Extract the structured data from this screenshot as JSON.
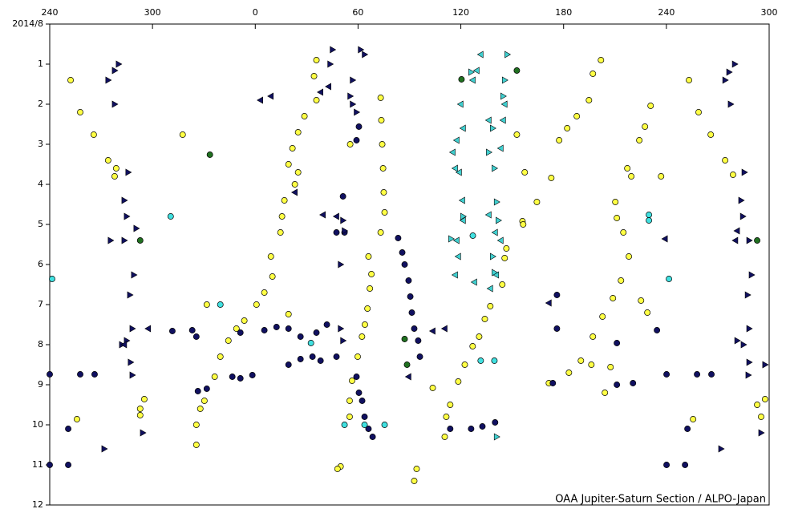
{
  "chart_data": {
    "type": "scatter",
    "annotation": "OAA Jupiter-Saturn Section / ALPO-Japan",
    "xlim": [
      240,
      660
    ],
    "xticks": [
      240,
      300,
      {
        "value": 360,
        "label": "0"
      },
      {
        "value": 420,
        "label": "60"
      },
      {
        "value": 480,
        "label": "120"
      },
      {
        "value": 540,
        "label": "180"
      },
      {
        "value": 600,
        "label": "240"
      },
      {
        "value": 660,
        "label": "300"
      }
    ],
    "ylim": [
      0,
      12
    ],
    "y_reversed": true,
    "yticks": [
      {
        "value": 0,
        "label": "2014/8"
      },
      1,
      2,
      3,
      4,
      5,
      6,
      7,
      8,
      9,
      10,
      11,
      12
    ],
    "ytick_labels_override": null,
    "series": [
      {
        "color": "#ffff44",
        "marker": "circle",
        "x": [
          252.2,
          257.8,
          265.7,
          274.1,
          278.8,
          277.9,
          292.8,
          295.2,
          292.8,
          317.6,
          331.7,
          613.2,
          618.8,
          625.9,
          634.3,
          638.9,
          653.0,
          655.3,
          657.6,
          615.6,
          255.9,
          395.7,
          394.3,
          395.7,
          388.7,
          385.0,
          381.7,
          379.4,
          385.0,
          383.1,
          377.0,
          375.6,
          374.7,
          369.1,
          370.0,
          365.3,
          360.7,
          353.6,
          349.0,
          344.3,
          339.6,
          336.3,
          330.3,
          327.9,
          325.6,
          325.6,
          433.2,
          433.6,
          434.1,
          434.6,
          435.0,
          435.5,
          433.2,
          427.8,
          426.9,
          425.5,
          424.0,
          422.3,
          419.8,
          416.5,
          415.1,
          415.1,
          426.1,
          415.4,
          561.8,
          557.1,
          554.8,
          547.7,
          542.1,
          537.4,
          532.8,
          524.4,
          516.0,
          504.2,
          497.2,
          494.0,
          490.7,
          486.9,
          482.3,
          478.5,
          473.8,
          471.5,
          470.6,
          590.8,
          587.5,
          584.2,
          577.2,
          579.5,
          570.2,
          571.1,
          574.9,
          578.1,
          573.5,
          568.8,
          562.7,
          557.1,
          550.1,
          543.1,
          564.1,
          596.9,
          512.7,
          517.3,
          516.4,
          505.6,
          506.6,
          454.2,
          452.8,
          409.8,
          408.0,
          463.6,
          379.4,
          585.2,
          588.9,
          531.4,
          567.4,
          556.2
        ],
        "values": [
          1.4,
          2.2,
          2.76,
          3.4,
          3.6,
          3.8,
          9.6,
          9.36,
          9.76,
          2.76,
          7.0,
          1.4,
          2.2,
          2.76,
          3.4,
          3.76,
          9.5,
          9.8,
          9.36,
          9.86,
          9.86,
          0.9,
          1.3,
          1.9,
          2.3,
          2.7,
          3.1,
          3.5,
          3.7,
          4.0,
          4.4,
          4.8,
          5.2,
          5.8,
          6.3,
          6.7,
          7.0,
          7.4,
          7.6,
          7.9,
          8.3,
          8.8,
          9.4,
          9.6,
          10.0,
          10.5,
          1.84,
          2.4,
          3.0,
          3.6,
          4.2,
          4.7,
          5.2,
          6.24,
          6.6,
          7.1,
          7.5,
          7.8,
          8.3,
          8.9,
          9.4,
          9.8,
          5.8,
          3.0,
          0.9,
          1.24,
          1.9,
          2.3,
          2.6,
          2.9,
          3.84,
          4.44,
          4.92,
          6.5,
          7.04,
          7.36,
          7.8,
          8.04,
          8.5,
          8.92,
          9.5,
          9.8,
          10.3,
          2.04,
          2.56,
          2.9,
          3.6,
          3.8,
          4.44,
          4.84,
          5.2,
          5.8,
          6.4,
          6.84,
          7.3,
          7.8,
          8.4,
          8.7,
          9.2,
          3.8,
          2.76,
          3.7,
          5.0,
          5.84,
          5.6,
          11.1,
          11.4,
          11.04,
          11.1,
          9.08,
          7.24,
          6.9,
          7.2,
          8.96,
          8.56,
          8.5
        ]
      },
      {
        "color": "#101060",
        "marker": "circle",
        "x": [
          443.4,
          445.8,
          447.2,
          449.5,
          450.5,
          451.4,
          452.8,
          455.1,
          456.1,
          419.1,
          420.5,
          422.4,
          423.8,
          426.1,
          428.5,
          311.6,
          323.2,
          325.6,
          351.3,
          365.3,
          372.4,
          379.4,
          386.4,
          395.7,
          401.8,
          379.4,
          386.4,
          393.4,
          398.1,
          407.4,
          346.6,
          351.3,
          358.3,
          240.0,
          257.8,
          266.2,
          250.8,
          250.8,
          240.0,
          326.5,
          331.7,
          411.2,
          407.4,
          412.1,
          420.5,
          419.1,
          536.1,
          533.7,
          571.1,
          580.5,
          571.1,
          594.5,
          600.1,
          617.9,
          626.3,
          612.3,
          610.9,
          600.1,
          536.1,
          473.8,
          486.0,
          492.6,
          500.0
        ],
        "values": [
          5.34,
          5.7,
          6.0,
          6.4,
          6.8,
          7.2,
          7.6,
          7.9,
          8.3,
          8.8,
          9.2,
          9.4,
          9.8,
          10.1,
          10.3,
          7.66,
          7.64,
          7.8,
          7.7,
          7.64,
          7.56,
          7.6,
          7.8,
          7.7,
          7.5,
          8.5,
          8.36,
          8.3,
          8.4,
          8.3,
          8.8,
          8.84,
          8.76,
          8.74,
          8.74,
          8.74,
          10.1,
          11.0,
          11.0,
          9.16,
          9.1,
          4.3,
          5.2,
          5.2,
          2.56,
          2.9,
          7.6,
          8.96,
          9.0,
          8.96,
          7.96,
          7.64,
          8.74,
          8.74,
          8.74,
          10.1,
          11.0,
          11.0,
          6.76,
          10.1,
          10.1,
          10.04,
          9.94
        ]
      },
      {
        "color": "#40e0e0",
        "marker": "circle",
        "x": [
          241.4,
          310.6,
          339.6,
          392.5,
          412.1,
          423.8,
          435.5,
          491.6,
          499.6,
          487.0,
          589.8,
          589.8,
          601.5
        ],
        "values": [
          6.36,
          4.8,
          7.0,
          7.96,
          10.0,
          10.0,
          10.0,
          8.4,
          8.4,
          5.28,
          4.76,
          4.9,
          6.36
        ]
      },
      {
        "color": "#207020",
        "marker": "circle",
        "x": [
          333.5,
          480.4,
          512.7,
          447.2,
          448.6,
          653.0,
          292.8
        ],
        "values": [
          3.26,
          1.38,
          1.16,
          7.86,
          8.5,
          5.4,
          5.4
        ]
      },
      {
        "color": "#101060",
        "marker": "triangle-right",
        "x": [
          280.2,
          277.9,
          274.1,
          277.9,
          285.8,
          283.5,
          284.9,
          283.5,
          290.5,
          289.1,
          286.8,
          288.2,
          284.9,
          282.1,
          287.2,
          288.2,
          294.3,
          271.8,
          275.5,
          639.9,
          636.6,
          634.3,
          637.5,
          645.5,
          643.6,
          644.6,
          648.3,
          649.7,
          647.4,
          648.3,
          641.3,
          645.0,
          648.3,
          647.8,
          655.3,
          631.9,
          657.6,
          405.1,
          403.7,
          416.8,
          421.5,
          423.8,
          415.4,
          416.8,
          419.1,
          411.2,
          412.1,
          409.8,
          411.2,
          409.8
        ],
        "values": [
          1.0,
          1.16,
          1.4,
          2.0,
          3.7,
          4.4,
          4.8,
          5.4,
          5.1,
          6.26,
          6.76,
          7.6,
          7.9,
          8.0,
          8.44,
          8.76,
          10.2,
          10.6,
          5.4,
          1.0,
          1.2,
          1.4,
          2.0,
          3.7,
          4.4,
          4.8,
          5.4,
          6.26,
          6.76,
          7.6,
          7.9,
          8.0,
          8.44,
          8.76,
          10.2,
          10.6,
          8.5,
          0.64,
          1.0,
          1.4,
          0.64,
          0.76,
          1.8,
          2.0,
          2.2,
          4.9,
          5.16,
          7.6,
          7.9,
          6.0
        ]
      },
      {
        "color": "#101060",
        "marker": "triangle-left",
        "x": [
          369.1,
          363.0,
          383.1,
          399.5,
          407.4,
          402.8,
          398.1,
          297.5,
          283.5,
          470.6,
          463.6,
          449.5,
          531.4,
          599.2,
          641.3,
          640.3
        ],
        "values": [
          1.8,
          1.9,
          4.2,
          4.76,
          4.8,
          1.56,
          1.7,
          7.6,
          8.0,
          7.6,
          7.66,
          8.8,
          6.96,
          5.36,
          5.16,
          5.4
        ]
      },
      {
        "color": "#40d0d0",
        "marker": "triangle-left",
        "x": [
          491.6,
          489.3,
          487.0,
          479.9,
          481.3,
          477.6,
          475.3,
          476.7,
          479.0,
          480.9,
          481.3,
          477.6,
          478.5,
          476.7,
          487.9,
          496.3,
          500.0,
          503.3,
          500.7,
          497.2,
          503.3,
          504.7,
          505.6,
          496.3
        ],
        "values": [
          0.76,
          1.16,
          1.4,
          2.0,
          2.6,
          2.9,
          3.2,
          3.6,
          3.7,
          4.4,
          4.9,
          5.4,
          5.8,
          6.26,
          6.44,
          4.76,
          5.2,
          5.4,
          6.26,
          6.6,
          3.1,
          2.4,
          2.0,
          2.4
        ]
      },
      {
        "color": "#40d0d0",
        "marker": "triangle-right",
        "x": [
          507.1,
          505.6,
          504.7,
          498.6,
          496.3,
          499.6,
          500.9,
          501.9,
          498.6,
          499.6,
          500.9,
          474.3,
          481.3,
          486.0
        ],
        "values": [
          0.76,
          1.4,
          1.8,
          2.6,
          3.2,
          3.6,
          4.44,
          4.9,
          5.8,
          6.2,
          10.3,
          5.36,
          4.8,
          1.2
        ]
      }
    ]
  }
}
